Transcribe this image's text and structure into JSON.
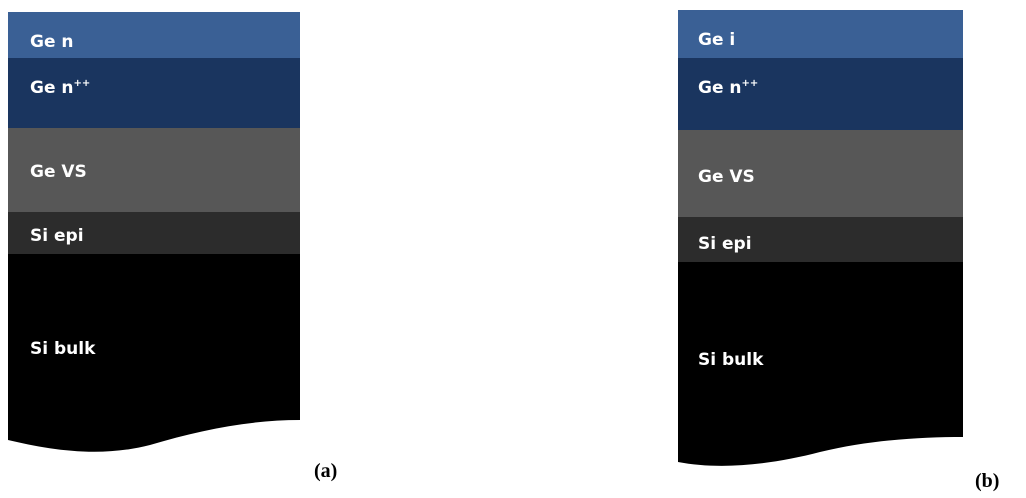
{
  "panels": [
    {
      "caption": "(a)",
      "layers": [
        {
          "label": "Ge n"
        },
        {
          "label": "Ge n",
          "superscript": "++"
        },
        {
          "label": "Ge VS"
        },
        {
          "label": "Si epi"
        },
        {
          "label": "Si bulk"
        }
      ]
    },
    {
      "caption": "(b)",
      "layers": [
        {
          "label": "Ge i"
        },
        {
          "label": "Ge n",
          "superscript": "++"
        },
        {
          "label": "Ge VS"
        },
        {
          "label": "Si epi"
        },
        {
          "label": "Si bulk"
        }
      ]
    }
  ]
}
